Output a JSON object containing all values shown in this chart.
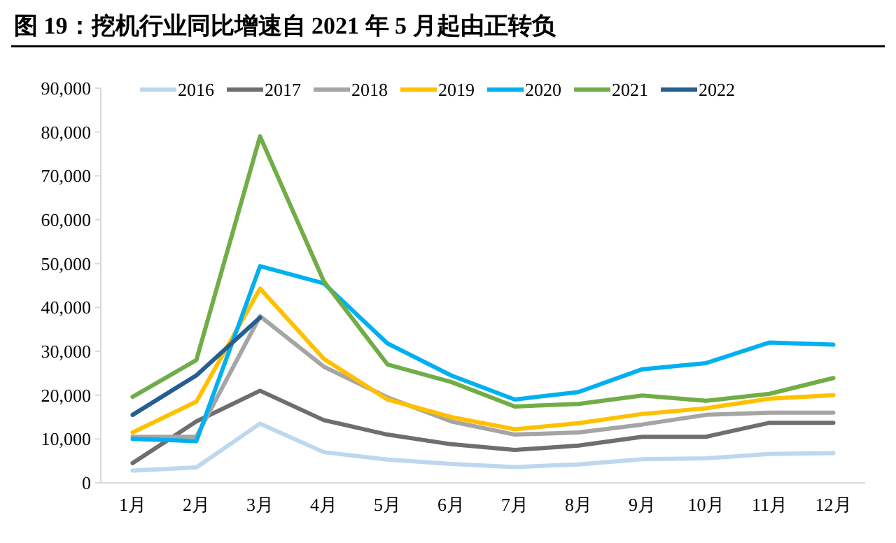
{
  "chart_data": {
    "type": "line",
    "title": "图 19：挖机行业同比增速自 2021 年 5 月起由正转负",
    "categories": [
      "1月",
      "2月",
      "3月",
      "4月",
      "5月",
      "6月",
      "7月",
      "8月",
      "9月",
      "10月",
      "11月",
      "12月"
    ],
    "ylim": [
      0,
      90000
    ],
    "yticks": [
      {
        "value": 0,
        "label": "0"
      },
      {
        "value": 10000,
        "label": "10,000"
      },
      {
        "value": 20000,
        "label": "20,000"
      },
      {
        "value": 30000,
        "label": "30,000"
      },
      {
        "value": 40000,
        "label": "40,000"
      },
      {
        "value": 50000,
        "label": "50,000"
      },
      {
        "value": 60000,
        "label": "60,000"
      },
      {
        "value": 70000,
        "label": "70,000"
      },
      {
        "value": 80000,
        "label": "80,000"
      },
      {
        "value": 90000,
        "label": "90,000"
      }
    ],
    "grid": false,
    "legend": "top",
    "marker": "none",
    "series": [
      {
        "name": "2016",
        "color": "#bdd7ee",
        "values": [
          2800,
          3500,
          13500,
          7000,
          5300,
          4300,
          3600,
          4200,
          5400,
          5600,
          6600,
          6800
        ]
      },
      {
        "name": "2017",
        "color": "#6e6e6e",
        "values": [
          4500,
          14000,
          21000,
          14300,
          11000,
          8800,
          7500,
          8500,
          10500,
          10500,
          13700,
          13700
        ]
      },
      {
        "name": "2018",
        "color": "#a5a5a5",
        "values": [
          10500,
          10500,
          38000,
          26500,
          19500,
          14000,
          11000,
          11500,
          13300,
          15500,
          16000,
          16000
        ]
      },
      {
        "name": "2019",
        "color": "#ffc000",
        "values": [
          11500,
          18500,
          44300,
          28300,
          19000,
          15000,
          12200,
          13600,
          15700,
          17000,
          19200,
          20000
        ]
      },
      {
        "name": "2020",
        "color": "#00b0f0",
        "values": [
          10000,
          9500,
          49400,
          45500,
          31800,
          24500,
          19000,
          20700,
          25900,
          27300,
          32000,
          31500
        ]
      },
      {
        "name": "2021",
        "color": "#70ad47",
        "values": [
          19600,
          28000,
          79000,
          46000,
          27000,
          23000,
          17400,
          18000,
          19900,
          18700,
          20300,
          23900
        ]
      },
      {
        "name": "2022",
        "color": "#255e91",
        "values": [
          15500,
          24500,
          37700,
          null,
          null,
          null,
          null,
          null,
          null,
          null,
          null,
          null
        ]
      }
    ]
  }
}
